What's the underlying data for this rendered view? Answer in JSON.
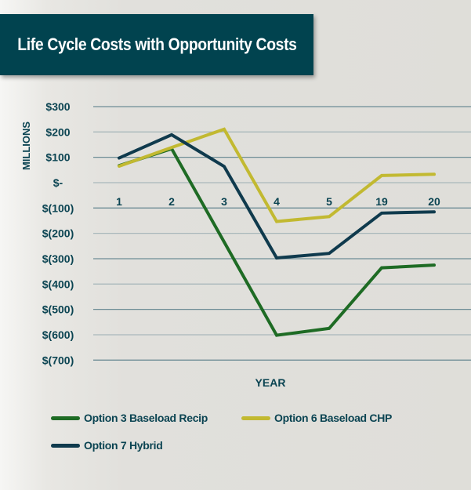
{
  "chart_data": {
    "type": "line",
    "title": "Life Cycle Costs with Opportunity Costs",
    "xlabel": "YEAR",
    "ylabel": "MILLIONS",
    "categories": [
      "1",
      "2",
      "3",
      "4",
      "5",
      "19",
      "20"
    ],
    "ylim": [
      -700,
      300
    ],
    "yticks": [
      300,
      200,
      100,
      0,
      -100,
      -200,
      -300,
      -400,
      -500,
      -600,
      -700
    ],
    "ytick_labels": [
      "$300",
      "$200",
      "$100",
      "$-",
      "$(100)",
      "$(200)",
      "$(300)",
      "$(400)",
      "$(500)",
      "$(600)",
      "$(700)"
    ],
    "grid": true,
    "legend_position": "bottom",
    "series": [
      {
        "name": "Option 3 Baseload Recip",
        "color": "#1e6b24",
        "values": [
          67,
          134,
          -234,
          -602,
          -575,
          -336,
          -325
        ]
      },
      {
        "name": "Option 6 Baseload CHP",
        "color": "#c2b931",
        "values": [
          65,
          139,
          211,
          -153,
          -134,
          28,
          33
        ]
      },
      {
        "name": "Option 7 Hybrid",
        "color": "#0f3a4d",
        "values": [
          97,
          189,
          64,
          -297,
          -279,
          -120,
          -115
        ]
      }
    ]
  }
}
